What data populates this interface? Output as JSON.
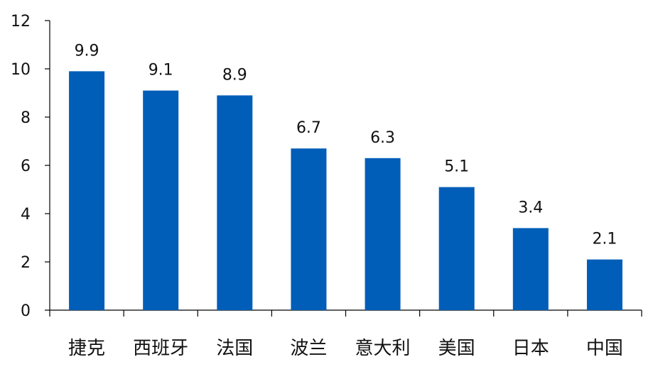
{
  "chart_data": {
    "type": "bar",
    "categories": [
      "捷克",
      "西班牙",
      "法国",
      "波兰",
      "意大利",
      "美国",
      "日本",
      "中国"
    ],
    "values": [
      9.9,
      9.1,
      8.9,
      6.7,
      6.3,
      5.1,
      3.4,
      2.1
    ],
    "data_labels": [
      "9.9",
      "9.1",
      "8.9",
      "6.7",
      "6.3",
      "5.1",
      "3.4",
      "2.1"
    ],
    "title": "",
    "xlabel": "",
    "ylabel": "",
    "ylim": [
      0,
      12
    ],
    "yticks": [
      "0",
      "2",
      "4",
      "6",
      "8",
      "10",
      "12"
    ],
    "grid": false,
    "legend": "none",
    "bar_color": "#005EB8",
    "axis_color": "#000000"
  }
}
